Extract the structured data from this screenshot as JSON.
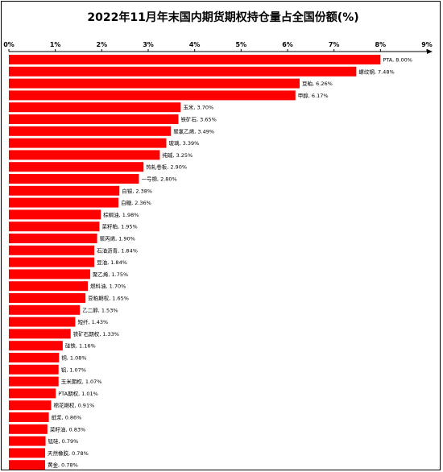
{
  "chart_data": {
    "type": "bar",
    "orientation": "horizontal",
    "title": "2022年11月年末国内期货期权持仓量占全国份额(%)",
    "xlim": [
      0,
      9
    ],
    "x_ticks": [
      "0%",
      "1%",
      "2%",
      "3%",
      "4%",
      "5%",
      "6%",
      "7%",
      "8%",
      "9%"
    ],
    "x_axis_position": "top",
    "grid": false,
    "bar_color": "#ff0000",
    "categories": [
      "PTA",
      "螺纹钢",
      "豆粕",
      "甲醇",
      "玉米",
      "铁矿石",
      "聚氯乙烯",
      "玻璃",
      "纯碱",
      "热轧卷板",
      "一号棉",
      "白银",
      "白糖",
      "棕榈油",
      "菜籽粕",
      "聚丙烯",
      "石油沥青",
      "豆油",
      "聚乙烯",
      "燃料油",
      "豆粕期权",
      "乙二醇",
      "短纤",
      "铁矿石期权",
      "硅铁",
      "铜",
      "铝",
      "玉米期权",
      "PTA期权",
      "棉花期权",
      "纸浆",
      "菜籽油",
      "锰硅",
      "天然橡胶",
      "黄金"
    ],
    "values": [
      8.0,
      7.48,
      6.26,
      6.17,
      3.7,
      3.65,
      3.49,
      3.39,
      3.25,
      2.9,
      2.8,
      2.38,
      2.36,
      1.98,
      1.95,
      1.9,
      1.84,
      1.84,
      1.75,
      1.7,
      1.65,
      1.53,
      1.43,
      1.33,
      1.16,
      1.08,
      1.07,
      1.07,
      1.01,
      0.91,
      0.86,
      0.83,
      0.79,
      0.78,
      0.78
    ],
    "labels": [
      "PTA, 8.00%",
      "螺纹钢, 7.48%",
      "豆粕, 6.26%",
      "甲醇, 6.17%",
      "玉米, 3.70%",
      "铁矿石, 3.65%",
      "聚氯乙烯, 3.49%",
      "玻璃, 3.39%",
      "纯碱, 3.25%",
      "热轧卷板, 2.90%",
      "一号棉, 2.80%",
      "白银, 2.38%",
      "白糖, 2.36%",
      "棕榈油, 1.98%",
      "菜籽粕, 1.95%",
      "聚丙烯, 1.90%",
      "石油沥青, 1.84%",
      "豆油, 1.84%",
      "聚乙烯, 1.75%",
      "燃料油, 1.70%",
      "豆粕期权, 1.65%",
      "乙二醇, 1.53%",
      "短纤, 1.43%",
      "铁矿石期权, 1.33%",
      "硅铁, 1.16%",
      "铜, 1.08%",
      "铝, 1.07%",
      "玉米期权, 1.07%",
      "PTA期权, 1.01%",
      "棉花期权, 0.91%",
      "纸浆, 0.86%",
      "菜籽油, 0.83%",
      "锰硅, 0.79%",
      "天然橡胶, 0.78%",
      "黄金, 0.78%"
    ]
  }
}
